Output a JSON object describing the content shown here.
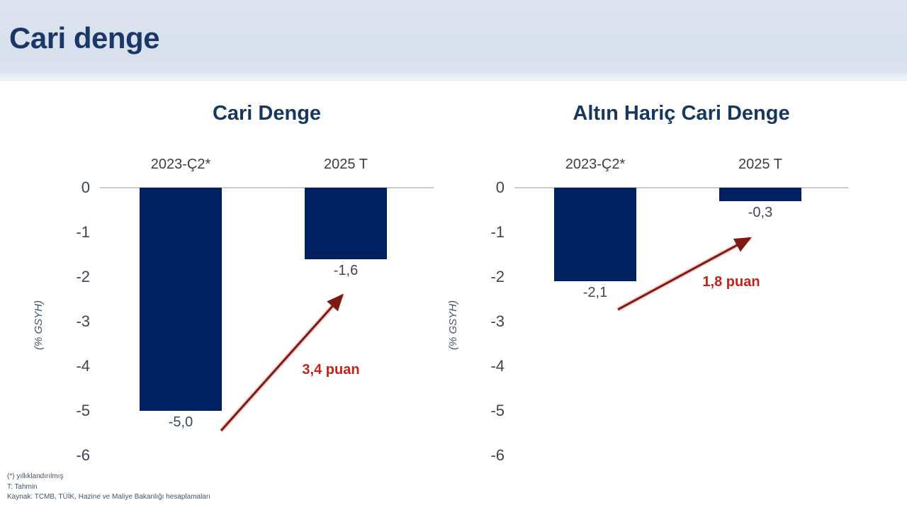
{
  "header": {
    "title": "Cari denge"
  },
  "chart_data": [
    {
      "type": "bar",
      "title": "Cari Denge",
      "ylabel": "(% GSYH)",
      "ylim": [
        -6,
        0
      ],
      "yticks": [
        "0",
        "-1",
        "-2",
        "-3",
        "-4",
        "-5",
        "-6"
      ],
      "categories": [
        "2023-Ç2*",
        "2025 T"
      ],
      "values": [
        -5.0,
        -1.6
      ],
      "value_labels": [
        "-5,0",
        "-1,6"
      ],
      "annotation": {
        "label": "3,4 puan"
      },
      "legend": "none",
      "grid": "off"
    },
    {
      "type": "bar",
      "title": "Altın Hariç Cari Denge",
      "ylabel": "(% GSYH)",
      "ylim": [
        -6,
        0
      ],
      "yticks": [
        "0",
        "-1",
        "-2",
        "-3",
        "-4",
        "-5",
        "-6"
      ],
      "categories": [
        "2023-Ç2*",
        "2025 T"
      ],
      "values": [
        -2.1,
        -0.3
      ],
      "value_labels": [
        "-2,1",
        "-0,3"
      ],
      "annotation": {
        "label": "1,8 puan"
      },
      "legend": "none",
      "grid": "off"
    }
  ],
  "footer": {
    "note_asterisk": "(*) yıllıklandırılmış",
    "note_t": "T: Tahmin",
    "source": "Kaynak: TCMB, TÜİK, Hazine ve Maliye Bakanlığı hesaplamaları"
  },
  "colors": {
    "bar": "#002060",
    "title_navy": "#1b3768",
    "chart_title_navy": "#17375d",
    "annotation_red": "#c2231c",
    "arrow_dark_red": "#7e1a13",
    "header_band": "#d8e0ed",
    "axis_line_gray": "#c9cccf"
  }
}
